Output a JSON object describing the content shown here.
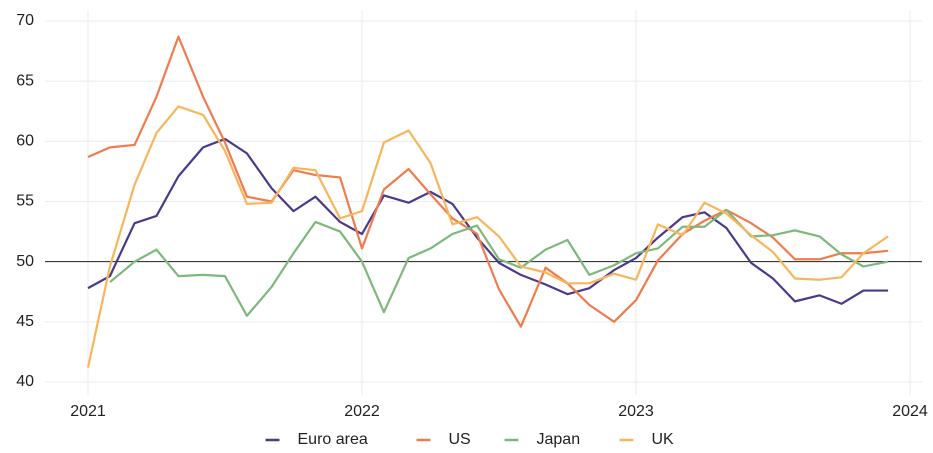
{
  "chart_data": {
    "type": "line",
    "x": [
      2021,
      2021.08,
      2021.17,
      2021.25,
      2021.33,
      2021.42,
      2021.5,
      2021.58,
      2021.67,
      2021.75,
      2021.83,
      2021.92,
      2022,
      2022.08,
      2022.17,
      2022.25,
      2022.33,
      2022.42,
      2022.5,
      2022.58,
      2022.67,
      2022.75,
      2022.83,
      2022.92,
      2023,
      2023.08,
      2023.17,
      2023.25,
      2023.33,
      2023.42,
      2023.5,
      2023.58,
      2023.67,
      2023.75,
      2023.83,
      2023.92
    ],
    "series": [
      {
        "name": "Euro area",
        "color": "#4b3a8c",
        "values": [
          47.8,
          48.8,
          53.2,
          53.8,
          57.1,
          59.5,
          60.2,
          59.0,
          56.1,
          54.2,
          55.4,
          53.3,
          52.3,
          55.5,
          54.9,
          55.8,
          54.8,
          52.0,
          49.9,
          48.9,
          48.1,
          47.3,
          47.8,
          49.3,
          50.3,
          52.0,
          53.7,
          54.1,
          52.8,
          49.9,
          48.6,
          46.7,
          47.2,
          46.5,
          47.6,
          47.6
        ]
      },
      {
        "name": "US",
        "color": "#f07c4e",
        "values": [
          58.7,
          59.5,
          59.7,
          63.7,
          68.7,
          63.7,
          59.9,
          55.4,
          55.0,
          57.6,
          57.2,
          57.0,
          51.1,
          56.0,
          57.7,
          55.6,
          53.6,
          52.3,
          47.7,
          44.6,
          49.5,
          48.2,
          46.4,
          45.0,
          46.8,
          50.1,
          52.3,
          53.4,
          54.3,
          53.2,
          52.0,
          50.2,
          50.2,
          50.7,
          50.7,
          50.9
        ]
      },
      {
        "name": "Japan",
        "color": "#7db87d",
        "values": [
          null,
          48.3,
          50.0,
          51.0,
          48.8,
          48.9,
          48.8,
          45.5,
          47.9,
          50.7,
          53.3,
          52.5,
          50.0,
          45.8,
          50.3,
          51.1,
          52.3,
          53.0,
          50.2,
          49.5,
          51.0,
          51.8,
          48.9,
          49.7,
          50.7,
          51.1,
          52.9,
          52.9,
          54.3,
          52.1,
          52.2,
          52.6,
          52.1,
          50.6,
          49.6,
          50.0
        ]
      },
      {
        "name": "UK",
        "color": "#f9b55b",
        "values": [
          41.2,
          49.6,
          56.4,
          60.7,
          62.9,
          62.2,
          59.2,
          54.8,
          54.9,
          57.8,
          57.6,
          53.6,
          54.2,
          59.9,
          60.9,
          58.2,
          53.1,
          53.7,
          52.1,
          49.6,
          49.1,
          48.2,
          48.2,
          49.0,
          48.5,
          53.1,
          52.2,
          54.9,
          54.0,
          52.2,
          50.8,
          48.6,
          48.5,
          48.7,
          50.7,
          52.1
        ]
      }
    ],
    "xlim": [
      2021,
      2024
    ],
    "xticks": [
      2021,
      2022,
      2023,
      2024
    ],
    "ylim": [
      40,
      70
    ],
    "yticks": [
      40,
      45,
      50,
      55,
      60,
      65,
      70
    ],
    "reference_line": 50,
    "grid": true,
    "legend": "bottom"
  }
}
